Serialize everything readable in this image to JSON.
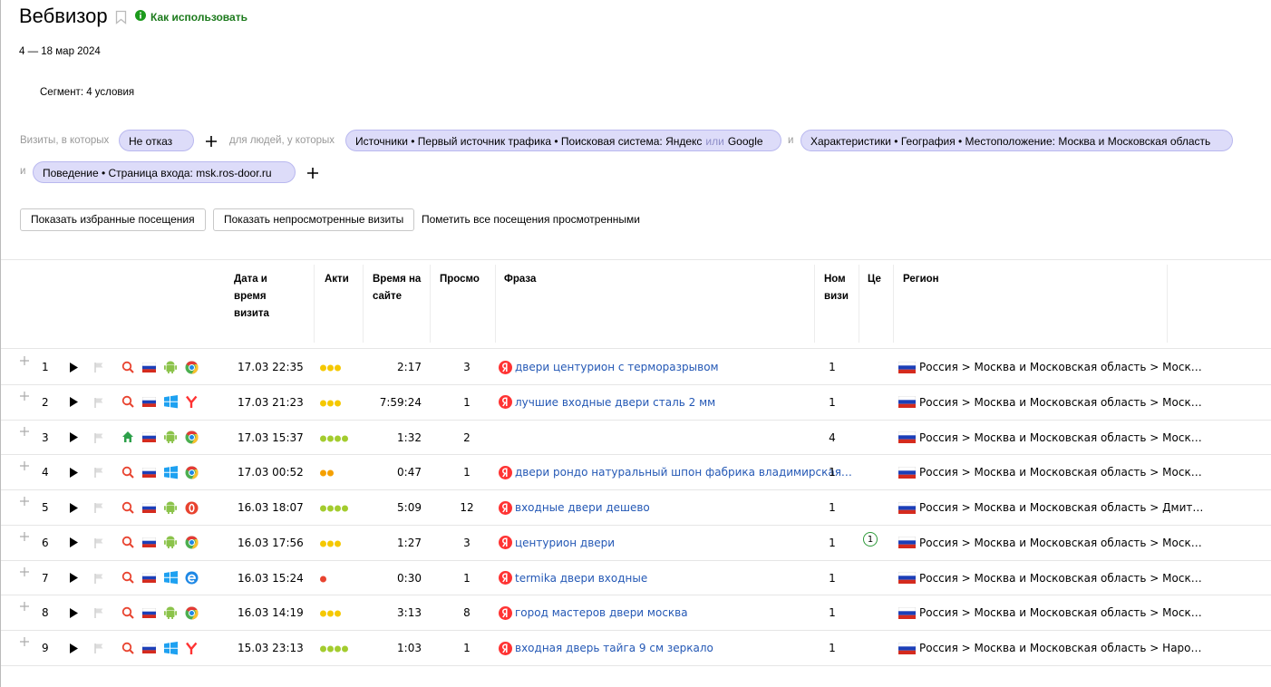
{
  "header": {
    "title": "Вебвизор",
    "help": "Как использовать",
    "date_range": "4 — 18 мар 2024",
    "segment": "Сегмент: 4 условия"
  },
  "filters": {
    "visits_label": "Визиты, в которых",
    "visit_condition": "Не отказ",
    "people_label": "для людей, у которых",
    "and": "и",
    "conditions": [
      [
        "Источники • Первый источник трафика • Поисковая система: Яндекс",
        "или",
        "Google"
      ],
      [
        "Характеристики • География • Местоположение: Москва и Московская область"
      ],
      [
        "Поведение • Страница входа: msk.ros-door.ru"
      ]
    ]
  },
  "buttons": [
    "Показать избранные посещения",
    "Показать непросмотренные визиты",
    "Пометить все посещения просмотренными"
  ],
  "table": {
    "columns": [
      "Дата и время визита",
      "Акти",
      "Время на сайте",
      "Просмо",
      "Фраза",
      "Ном визи",
      "Це",
      "Регион"
    ],
    "rows": [
      {
        "number": 1,
        "source": "search",
        "os": "android",
        "browser": "chrome",
        "date": "17.03 22:35",
        "activity": 3,
        "duration": "2:17",
        "views": 3,
        "phrase": "двери центурион с терморазрывом",
        "visit_number": 1,
        "goals": null,
        "region": "Россия > Москва и Московская область > Моск…"
      },
      {
        "number": 2,
        "source": "search",
        "os": "windows",
        "browser": "yandex",
        "date": "17.03 21:23",
        "activity": 3,
        "duration": "7:59:24",
        "views": 1,
        "phrase": "лучшие входные двери сталь 2 мм",
        "visit_number": 1,
        "goals": null,
        "region": "Россия > Москва и Московская область > Моск…"
      },
      {
        "number": 3,
        "source": "home",
        "os": "android",
        "browser": "chrome",
        "date": "17.03 15:37",
        "activity": 4,
        "duration": "1:32",
        "views": 2,
        "phrase": null,
        "visit_number": 4,
        "goals": null,
        "region": "Россия > Москва и Московская область > Моск…"
      },
      {
        "number": 4,
        "source": "search",
        "os": "windows",
        "browser": "chrome",
        "date": "17.03 00:52",
        "activity": 2,
        "duration": "0:47",
        "views": 1,
        "phrase": "двери рондо натуральный шпон фабрика владимирская…",
        "visit_number": 1,
        "goals": null,
        "region": "Россия > Москва и Московская область > Моск…"
      },
      {
        "number": 5,
        "source": "search",
        "os": "android",
        "browser": "opera",
        "date": "16.03 18:07",
        "activity": 4,
        "duration": "5:09",
        "views": 12,
        "phrase": "входные двери дешево",
        "visit_number": 1,
        "goals": null,
        "region": "Россия > Москва и Московская область > Дмит…"
      },
      {
        "number": 6,
        "source": "search",
        "os": "android",
        "browser": "chrome",
        "date": "16.03 17:56",
        "activity": 3,
        "duration": "1:27",
        "views": 3,
        "phrase": "центурион двери",
        "visit_number": 1,
        "goals": 1,
        "region": "Россия > Москва и Московская область > Моск…"
      },
      {
        "number": 7,
        "source": "search",
        "os": "windows",
        "browser": "edge",
        "date": "16.03 15:24",
        "activity": 1,
        "duration": "0:30",
        "views": 1,
        "phrase": "termika двери входные",
        "visit_number": 1,
        "goals": null,
        "region": "Россия > Москва и Московская область > Моск…"
      },
      {
        "number": 8,
        "source": "search",
        "os": "android",
        "browser": "chrome",
        "date": "16.03 14:19",
        "activity": 3,
        "duration": "3:13",
        "views": 8,
        "phrase": "город мастеров двери москва",
        "visit_number": 1,
        "goals": null,
        "region": "Россия > Москва и Московская область > Моск…"
      },
      {
        "number": 9,
        "source": "search",
        "os": "windows",
        "browser": "yandex",
        "date": "15.03 23:13",
        "activity": 4,
        "duration": "1:03",
        "views": 1,
        "phrase": "входная дверь тайга 9 см зеркало",
        "visit_number": 1,
        "goals": null,
        "region": "Россия > Москва и Московская область > Наро…"
      }
    ]
  }
}
